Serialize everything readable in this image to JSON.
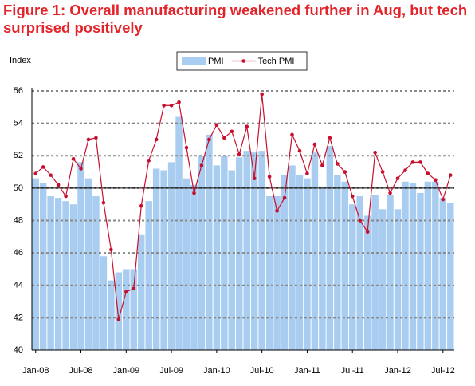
{
  "chart_data": {
    "type": "bar_line",
    "title": "Figure 1: Overall manufacturing weakened further in Aug, but tech surprised positively",
    "y_axis_label": "Index",
    "categories": [
      "Jan-08",
      null,
      null,
      null,
      null,
      null,
      "Jul-08",
      null,
      null,
      null,
      null,
      null,
      "Jan-09",
      null,
      null,
      null,
      null,
      null,
      "Jul-09",
      null,
      null,
      null,
      null,
      null,
      "Jan-10",
      null,
      null,
      null,
      null,
      null,
      "Jul-10",
      null,
      null,
      null,
      null,
      null,
      "Jan-11",
      null,
      null,
      null,
      null,
      null,
      "Jul-11",
      null,
      null,
      null,
      null,
      null,
      "Jan-12",
      null,
      null,
      null,
      null,
      null,
      "Jul-12",
      null
    ],
    "series": [
      {
        "name": "PMI",
        "type": "bar",
        "color": "#a9cdf0",
        "values": [
          50.6,
          50.3,
          49.5,
          49.4,
          49.2,
          49.0,
          51.6,
          50.6,
          49.5,
          45.8,
          44.3,
          44.8,
          45.0,
          45.0,
          47.1,
          49.2,
          51.2,
          51.1,
          51.6,
          54.4,
          50.6,
          50.2,
          52.0,
          53.3,
          51.4,
          52.0,
          51.1,
          51.9,
          52.3,
          52.2,
          52.3,
          49.5,
          49.5,
          50.8,
          51.4,
          50.8,
          50.6,
          52.2,
          50.1,
          52.6,
          50.8,
          50.4,
          49.0,
          49.5,
          48.3,
          49.6,
          48.7,
          49.6,
          48.7,
          50.4,
          50.3,
          49.7,
          50.4,
          50.4,
          49.4,
          49.1
        ]
      },
      {
        "name": "Tech PMI",
        "type": "line",
        "color": "#c8102e",
        "values": [
          50.9,
          51.3,
          50.8,
          50.2,
          49.5,
          51.8,
          51.2,
          53.0,
          53.1,
          49.1,
          46.2,
          41.9,
          43.6,
          43.8,
          48.9,
          51.7,
          53.0,
          55.1,
          55.1,
          55.3,
          52.5,
          49.7,
          51.4,
          53.0,
          53.9,
          53.1,
          53.5,
          52.1,
          53.8,
          50.6,
          55.8,
          50.7,
          48.6,
          49.4,
          53.3,
          52.3,
          50.9,
          52.7,
          51.4,
          53.1,
          51.5,
          51.0,
          49.5,
          48.0,
          47.3,
          52.2,
          51.0,
          49.7,
          50.6,
          51.1,
          51.6,
          51.6,
          50.9,
          50.5,
          49.3,
          50.8
        ]
      }
    ],
    "ylim": [
      40,
      56
    ],
    "yticks": [
      40,
      42,
      44,
      46,
      48,
      50,
      52,
      54,
      56
    ],
    "grid": true,
    "reference_line": 50,
    "legend": "top"
  }
}
